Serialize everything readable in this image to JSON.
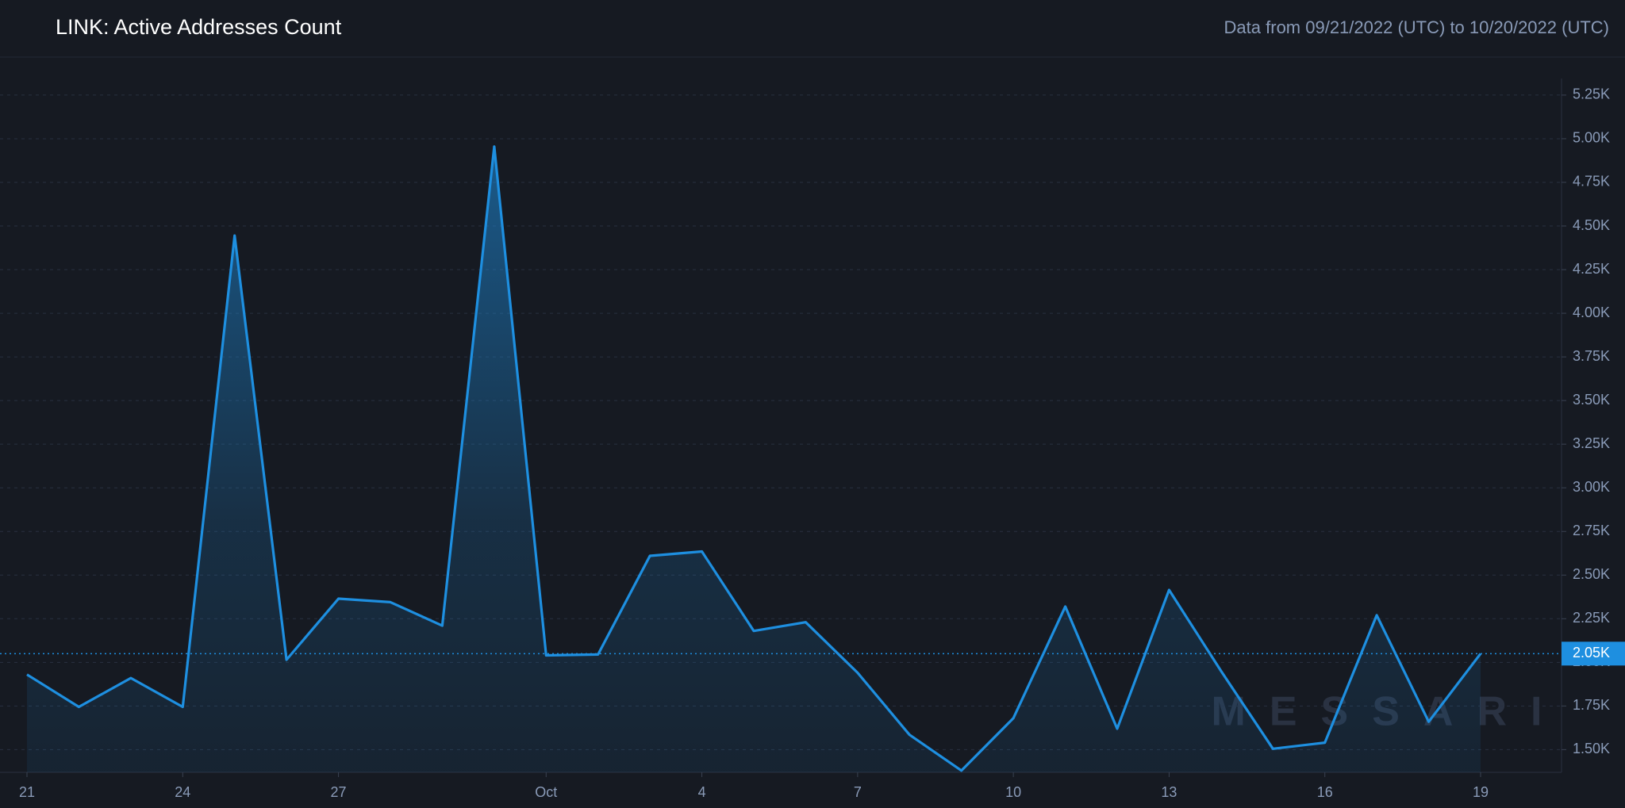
{
  "chart_data": {
    "type": "area",
    "title": "LINK: Active Addresses Count",
    "subtitle": "Data from 09/21/2022 (UTC) to 10/20/2022 (UTC)",
    "watermark": "MESSARI",
    "categories": [
      "21",
      null,
      null,
      "24",
      null,
      null,
      "27",
      null,
      null,
      null,
      "Oct",
      null,
      null,
      "4",
      null,
      null,
      "7",
      null,
      null,
      "10",
      null,
      null,
      "13",
      null,
      null,
      "16",
      null,
      null,
      "19"
    ],
    "series": [
      {
        "color": "#1e8fe0",
        "values": [
          1930,
          1745,
          1910,
          1745,
          4445,
          2015,
          2365,
          2345,
          2210,
          4955,
          2040,
          2045,
          2610,
          2635,
          2180,
          2230,
          1940,
          1585,
          1380,
          1680,
          2320,
          1620,
          2415,
          1950,
          1505,
          1540,
          2270,
          1660,
          2050
        ],
        "value_labels": [
          null,
          null,
          null,
          null,
          null,
          null,
          null,
          null,
          null,
          null,
          null,
          null,
          null,
          null,
          null,
          null,
          null,
          null,
          null,
          null,
          null,
          null,
          null,
          null,
          null,
          null,
          null,
          null,
          "2.05K"
        ]
      }
    ],
    "ylim": [
      1370,
      5345
    ],
    "yticks": [
      {
        "value": 1500,
        "label": "1.50K"
      },
      {
        "value": 1750,
        "label": "1.75K"
      },
      {
        "value": 2000,
        "label": "2.00K"
      },
      {
        "value": 2250,
        "label": "2.25K"
      },
      {
        "value": 2500,
        "label": "2.50K"
      },
      {
        "value": 2750,
        "label": "2.75K"
      },
      {
        "value": 3000,
        "label": "3.00K"
      },
      {
        "value": 3250,
        "label": "3.25K"
      },
      {
        "value": 3500,
        "label": "3.50K"
      },
      {
        "value": 3750,
        "label": "3.75K"
      },
      {
        "value": 4000,
        "label": "4.00K"
      },
      {
        "value": 4250,
        "label": "4.25K"
      },
      {
        "value": 4500,
        "label": "4.50K"
      },
      {
        "value": 4750,
        "label": "4.75K"
      },
      {
        "value": 5000,
        "label": "5.00K"
      },
      {
        "value": 5250,
        "label": "5.25K"
      }
    ],
    "grid": true
  }
}
